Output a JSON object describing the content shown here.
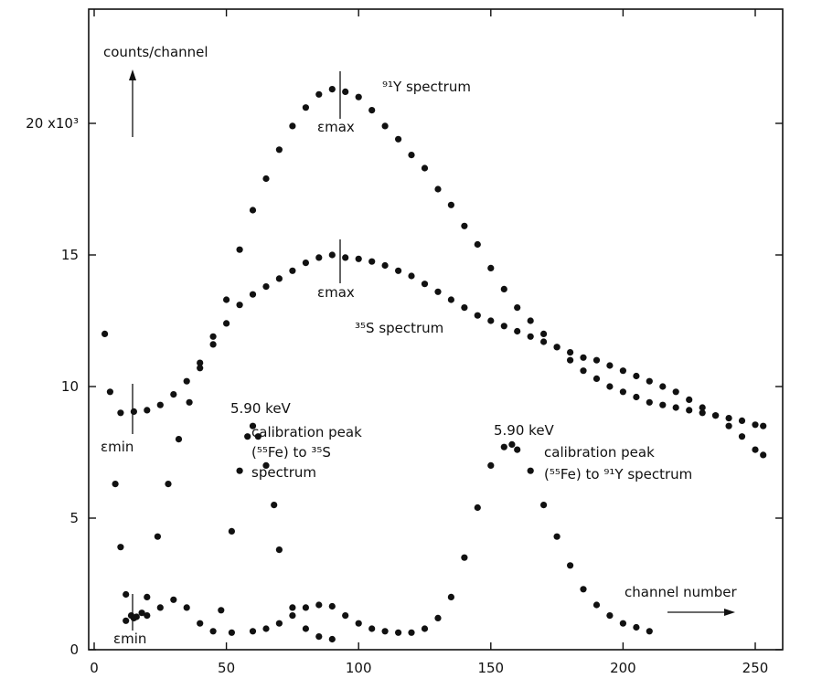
{
  "chart_data": {
    "type": "scatter",
    "xlabel": "channel number",
    "ylabel": "counts/channel",
    "xlim": [
      0,
      255
    ],
    "ylim": [
      0,
      23000
    ],
    "x_ticks": [
      0,
      50,
      100,
      150,
      200,
      250
    ],
    "x_tick_labels": [
      "0",
      "50",
      "100",
      "150",
      "200",
      "250"
    ],
    "y_ticks": [
      0,
      5000,
      10000,
      15000,
      20000
    ],
    "y_tick_labels": [
      "0",
      "5",
      "10",
      "15",
      "20 x10³"
    ],
    "grid": false,
    "series": [
      {
        "name": "⁹¹Y spectrum",
        "x": [
          4,
          6,
          8,
          10,
          12,
          14,
          16,
          18,
          20,
          24,
          28,
          32,
          36,
          40,
          45,
          50,
          55,
          60,
          65,
          70,
          75,
          80,
          85,
          90,
          95,
          100,
          105,
          110,
          115,
          120,
          125,
          130,
          135,
          140,
          145,
          150,
          155,
          160,
          165,
          170,
          175,
          180,
          185,
          190,
          195,
          200,
          205,
          210,
          215,
          220,
          225,
          230,
          235,
          240,
          245,
          250,
          253
        ],
        "y": [
          12000,
          9800,
          6300,
          3900,
          2100,
          1300,
          1250,
          1400,
          2000,
          4300,
          6300,
          8000,
          9400,
          10700,
          11900,
          13300,
          15200,
          16700,
          17900,
          19000,
          19900,
          20600,
          21100,
          21300,
          21200,
          21000,
          20500,
          19900,
          19400,
          18800,
          18300,
          17500,
          16900,
          16100,
          15400,
          14500,
          13700,
          13000,
          12500,
          12000,
          11500,
          11000,
          10600,
          10300,
          10000,
          9800,
          9600,
          9400,
          9300,
          9200,
          9100,
          9000,
          8900,
          8800,
          8700,
          8550,
          8500
        ]
      },
      {
        "name": "³⁵S spectrum",
        "x": [
          10,
          15,
          20,
          25,
          30,
          35,
          40,
          45,
          50,
          55,
          60,
          65,
          70,
          75,
          80,
          85,
          90,
          95,
          100,
          105,
          110,
          115,
          120,
          125,
          130,
          135,
          140,
          145,
          150,
          155,
          160,
          165,
          170,
          175,
          180,
          185,
          190,
          195,
          200,
          205,
          210,
          215,
          220,
          225,
          230,
          235,
          240,
          245,
          250,
          253
        ],
        "y": [
          9000,
          9050,
          9100,
          9300,
          9700,
          10200,
          10900,
          11600,
          12400,
          13100,
          13500,
          13800,
          14100,
          14400,
          14700,
          14900,
          15000,
          14900,
          14850,
          14750,
          14600,
          14400,
          14200,
          13900,
          13600,
          13300,
          13000,
          12700,
          12500,
          12300,
          12100,
          11900,
          11700,
          11500,
          11300,
          11100,
          11000,
          10800,
          10600,
          10400,
          10200,
          10000,
          9800,
          9500,
          9200,
          8900,
          8500,
          8100,
          7600,
          7400
        ]
      },
      {
        "name": "calibration peak (⁵⁵Fe) to ³⁵S spectrum",
        "x": [
          12,
          15,
          20,
          25,
          30,
          35,
          40,
          45,
          48,
          52,
          55,
          58,
          60,
          62,
          65,
          68,
          70,
          75,
          80,
          85,
          90
        ],
        "y": [
          1100,
          1200,
          1300,
          1600,
          1900,
          1600,
          1000,
          700,
          1500,
          4500,
          6800,
          8100,
          8500,
          8100,
          7000,
          5500,
          3800,
          1600,
          800,
          500,
          400
        ]
      },
      {
        "name": "calibration peak (⁵⁵Fe) to ⁹¹Y spectrum",
        "x": [
          52,
          60,
          65,
          70,
          75,
          80,
          85,
          90,
          95,
          100,
          105,
          110,
          115,
          120,
          125,
          130,
          135,
          140,
          145,
          150,
          155,
          158,
          160,
          165,
          170,
          175,
          180,
          185,
          190,
          195,
          200,
          205,
          210
        ],
        "y": [
          650,
          700,
          800,
          1000,
          1300,
          1600,
          1700,
          1650,
          1300,
          1000,
          800,
          700,
          650,
          650,
          800,
          1200,
          2000,
          3500,
          5400,
          7000,
          7700,
          7800,
          7600,
          6800,
          5500,
          4300,
          3200,
          2300,
          1700,
          1300,
          1000,
          850,
          700
        ]
      }
    ],
    "annotations": [
      {
        "id": "y91",
        "text": "⁹¹Y spectrum"
      },
      {
        "id": "s35",
        "text": "³⁵S spectrum"
      },
      {
        "id": "emax_y",
        "text": "εmax"
      },
      {
        "id": "emax_s",
        "text": "εmax"
      },
      {
        "id": "emin_top",
        "text": "εmin"
      },
      {
        "id": "emin_bot",
        "text": "εmin"
      },
      {
        "id": "kev_s",
        "text": "5.90 keV"
      },
      {
        "id": "kev_y",
        "text": "5.90 keV"
      },
      {
        "id": "cal_s_1",
        "text": "calibration peak"
      },
      {
        "id": "cal_s_2",
        "text": "(⁵⁵Fe) to ³⁵S"
      },
      {
        "id": "cal_s_3",
        "text": "spectrum"
      },
      {
        "id": "cal_y_1",
        "text": "calibration peak"
      },
      {
        "id": "cal_y_2",
        "text": "(⁵⁵Fe) to ⁹¹Y spectrum"
      }
    ]
  }
}
